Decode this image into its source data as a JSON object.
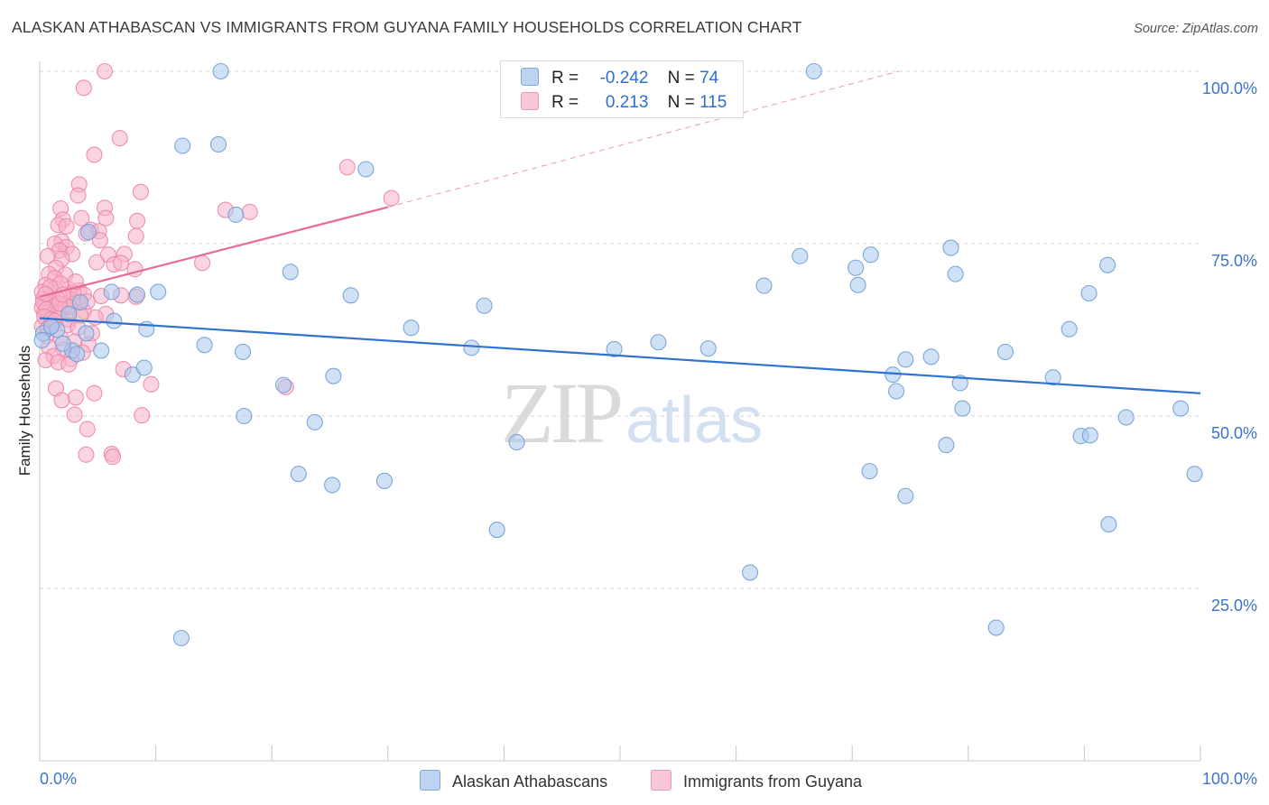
{
  "header": {
    "title": "ALASKAN ATHABASCAN VS IMMIGRANTS FROM GUYANA FAMILY HOUSEHOLDS CORRELATION CHART",
    "source": "Source: ZipAtlas.com"
  },
  "stats": {
    "rows": [
      {
        "r_label": "R =",
        "r": "-0.242",
        "n_label": "N =",
        "n": "74"
      },
      {
        "r_label": "R =",
        "r": "0.213",
        "n_label": "N =",
        "n": "115"
      }
    ]
  },
  "legend": {
    "items": [
      "Alaskan Athabascans",
      "Immigrants from Guyana"
    ]
  },
  "watermark": {
    "zip": "ZIP",
    "atlas": "atlas"
  },
  "colors": {
    "blue_fill": "#a9c8ef",
    "blue_stroke": "#6f9fd8",
    "blue_line": "#2f72d0",
    "pink_fill": "#f6b3c8",
    "pink_stroke": "#ec86a7",
    "pink_line": "#e86b94",
    "axis_text": "#3d74c9",
    "grid": "#d6d6d6"
  },
  "chart_data": {
    "type": "scatter",
    "title": "ALASKAN ATHABASCAN VS IMMIGRANTS FROM GUYANA FAMILY HOUSEHOLDS CORRELATION CHART",
    "xlabel": "",
    "ylabel": "Family Households",
    "xlim": [
      0,
      100
    ],
    "ylim": [
      0,
      100
    ],
    "x_tick_labels": [
      "0.0%",
      "100.0%"
    ],
    "y_ticks": [
      25,
      50,
      75,
      100
    ],
    "y_tick_labels": [
      "25.0%",
      "50.0%",
      "75.0%",
      "100.0%"
    ],
    "grid": true,
    "legend_position": "bottom-center",
    "series": [
      {
        "name": "Alaskan Athabascans",
        "color": "#a9c8ef",
        "r": -0.242,
        "n": 74,
        "trend": {
          "x0": 0,
          "y0": 64.2,
          "x1": 100,
          "y1": 53.3
        },
        "points": [
          [
            15.6,
            100
          ],
          [
            66.7,
            100
          ],
          [
            12.3,
            89.2
          ],
          [
            15.4,
            89.4
          ],
          [
            28.1,
            85.8
          ],
          [
            16.9,
            79.2
          ],
          [
            4.2,
            76.7
          ],
          [
            21.6,
            70.9
          ],
          [
            6.2,
            68.0
          ],
          [
            8.4,
            67.6
          ],
          [
            10.2,
            68.0
          ],
          [
            26.8,
            67.5
          ],
          [
            38.3,
            66.0
          ],
          [
            3.5,
            66.5
          ],
          [
            2.5,
            64.8
          ],
          [
            6.4,
            63.8
          ],
          [
            9.2,
            62.6
          ],
          [
            32.0,
            62.8
          ],
          [
            0.3,
            62.0
          ],
          [
            1.5,
            62.5
          ],
          [
            0.2,
            61.0
          ],
          [
            2.8,
            59.5
          ],
          [
            3.2,
            59.0
          ],
          [
            5.3,
            59.5
          ],
          [
            14.2,
            60.3
          ],
          [
            17.5,
            59.3
          ],
          [
            37.2,
            59.9
          ],
          [
            49.5,
            59.7
          ],
          [
            53.3,
            60.7
          ],
          [
            57.6,
            59.8
          ],
          [
            8.0,
            56.0
          ],
          [
            9.0,
            57.0
          ],
          [
            21.0,
            54.5
          ],
          [
            25.3,
            55.8
          ],
          [
            17.6,
            50.0
          ],
          [
            23.7,
            49.1
          ],
          [
            41.1,
            46.2
          ],
          [
            22.3,
            41.6
          ],
          [
            25.2,
            40.0
          ],
          [
            29.7,
            40.6
          ],
          [
            39.4,
            33.5
          ],
          [
            61.2,
            27.3
          ],
          [
            12.2,
            17.8
          ],
          [
            62.4,
            68.9
          ],
          [
            65.5,
            73.2
          ],
          [
            70.3,
            71.5
          ],
          [
            70.5,
            69.0
          ],
          [
            71.6,
            73.4
          ],
          [
            78.5,
            74.4
          ],
          [
            78.9,
            70.6
          ],
          [
            73.5,
            56.0
          ],
          [
            73.8,
            53.6
          ],
          [
            74.6,
            58.2
          ],
          [
            76.8,
            58.6
          ],
          [
            79.3,
            54.8
          ],
          [
            79.5,
            51.1
          ],
          [
            83.2,
            59.3
          ],
          [
            87.3,
            55.6
          ],
          [
            88.7,
            62.6
          ],
          [
            92.0,
            71.9
          ],
          [
            90.4,
            67.8
          ],
          [
            78.1,
            45.8
          ],
          [
            71.5,
            42.0
          ],
          [
            74.6,
            38.4
          ],
          [
            89.7,
            47.1
          ],
          [
            90.5,
            47.2
          ],
          [
            93.6,
            49.8
          ],
          [
            92.1,
            34.3
          ],
          [
            98.3,
            51.1
          ],
          [
            99.5,
            41.6
          ],
          [
            82.4,
            19.3
          ],
          [
            1.0,
            63.0
          ],
          [
            2.0,
            60.5
          ],
          [
            4.0,
            62.0
          ]
        ]
      },
      {
        "name": "Immigrants from Guyana",
        "color": "#f6b3c8",
        "r": 0.213,
        "n": 115,
        "trend": {
          "x0": 0,
          "y0": 67.3,
          "x1": 30,
          "y1": 80.3
        },
        "trend_extended": {
          "x0": 30,
          "y0": 80.3,
          "x1": 74,
          "y1": 100
        },
        "points": [
          [
            5.6,
            100
          ],
          [
            3.8,
            97.6
          ],
          [
            6.9,
            90.3
          ],
          [
            4.7,
            87.9
          ],
          [
            26.5,
            86.1
          ],
          [
            3.4,
            83.6
          ],
          [
            8.7,
            82.5
          ],
          [
            3.3,
            82.0
          ],
          [
            30.3,
            81.6
          ],
          [
            5.6,
            80.2
          ],
          [
            1.8,
            80.1
          ],
          [
            16.0,
            79.9
          ],
          [
            18.1,
            79.6
          ],
          [
            2.0,
            78.5
          ],
          [
            3.6,
            78.7
          ],
          [
            5.7,
            78.7
          ],
          [
            8.4,
            78.3
          ],
          [
            1.6,
            77.7
          ],
          [
            2.3,
            77.5
          ],
          [
            4.4,
            77.0
          ],
          [
            5.1,
            76.8
          ],
          [
            4.0,
            76.5
          ],
          [
            8.3,
            76.1
          ],
          [
            1.9,
            75.3
          ],
          [
            1.3,
            75.0
          ],
          [
            2.3,
            74.5
          ],
          [
            5.2,
            75.5
          ],
          [
            1.7,
            74.0
          ],
          [
            2.8,
            73.5
          ],
          [
            0.7,
            73.2
          ],
          [
            1.9,
            72.8
          ],
          [
            5.9,
            73.4
          ],
          [
            7.3,
            73.5
          ],
          [
            4.9,
            72.3
          ],
          [
            6.4,
            72.0
          ],
          [
            7.0,
            72.2
          ],
          [
            14.0,
            72.2
          ],
          [
            1.4,
            71.5
          ],
          [
            0.8,
            70.6
          ],
          [
            2.2,
            70.5
          ],
          [
            1.3,
            70.0
          ],
          [
            8.2,
            71.3
          ],
          [
            0.5,
            69.0
          ],
          [
            1.3,
            68.5
          ],
          [
            2.5,
            68.4
          ],
          [
            3.4,
            68.2
          ],
          [
            3.8,
            67.6
          ],
          [
            5.3,
            67.4
          ],
          [
            7.0,
            67.5
          ],
          [
            8.3,
            67.3
          ],
          [
            0.3,
            67.0
          ],
          [
            1.2,
            66.9
          ],
          [
            2.8,
            66.8
          ],
          [
            3.3,
            66.5
          ],
          [
            0.5,
            66.2
          ],
          [
            1.1,
            66.0
          ],
          [
            0.2,
            65.7
          ],
          [
            2.0,
            65.5
          ],
          [
            3.8,
            65.2
          ],
          [
            0.4,
            65.0
          ],
          [
            1.6,
            65.0
          ],
          [
            5.7,
            64.8
          ],
          [
            0.7,
            64.2
          ],
          [
            2.5,
            64.0
          ],
          [
            4.8,
            64.3
          ],
          [
            1.1,
            63.4
          ],
          [
            2.4,
            63.2
          ],
          [
            0.2,
            63.0
          ],
          [
            3.3,
            62.8
          ],
          [
            4.5,
            62.0
          ],
          [
            0.6,
            61.6
          ],
          [
            1.8,
            61.3
          ],
          [
            3.0,
            60.8
          ],
          [
            4.2,
            60.4
          ],
          [
            0.8,
            60.0
          ],
          [
            2.1,
            59.6
          ],
          [
            3.7,
            59.2
          ],
          [
            1.2,
            58.7
          ],
          [
            2.7,
            58.3
          ],
          [
            0.5,
            58.1
          ],
          [
            1.6,
            57.8
          ],
          [
            2.5,
            57.5
          ],
          [
            7.2,
            56.8
          ],
          [
            9.6,
            54.6
          ],
          [
            1.4,
            54.0
          ],
          [
            21.2,
            54.2
          ],
          [
            4.7,
            53.3
          ],
          [
            3.1,
            52.7
          ],
          [
            1.9,
            52.3
          ],
          [
            3.0,
            50.2
          ],
          [
            8.8,
            50.1
          ],
          [
            4.1,
            48.1
          ],
          [
            6.2,
            44.5
          ],
          [
            6.3,
            44.1
          ],
          [
            4.0,
            44.4
          ],
          [
            0.9,
            67.2
          ],
          [
            0.3,
            66.5
          ],
          [
            0.6,
            65.5
          ],
          [
            1.5,
            67.0
          ],
          [
            2.2,
            66.0
          ],
          [
            0.4,
            64.4
          ],
          [
            1.0,
            64.0
          ],
          [
            0.2,
            68.0
          ],
          [
            1.8,
            69.2
          ],
          [
            2.9,
            67.9
          ],
          [
            4.1,
            66.6
          ],
          [
            0.7,
            62.7
          ],
          [
            1.3,
            63.8
          ],
          [
            2.6,
            65.8
          ],
          [
            3.5,
            64.6
          ],
          [
            0.9,
            68.7
          ],
          [
            1.7,
            66.3
          ],
          [
            0.5,
            67.7
          ],
          [
            2.0,
            67.6
          ],
          [
            3.1,
            69.5
          ]
        ]
      }
    ]
  }
}
